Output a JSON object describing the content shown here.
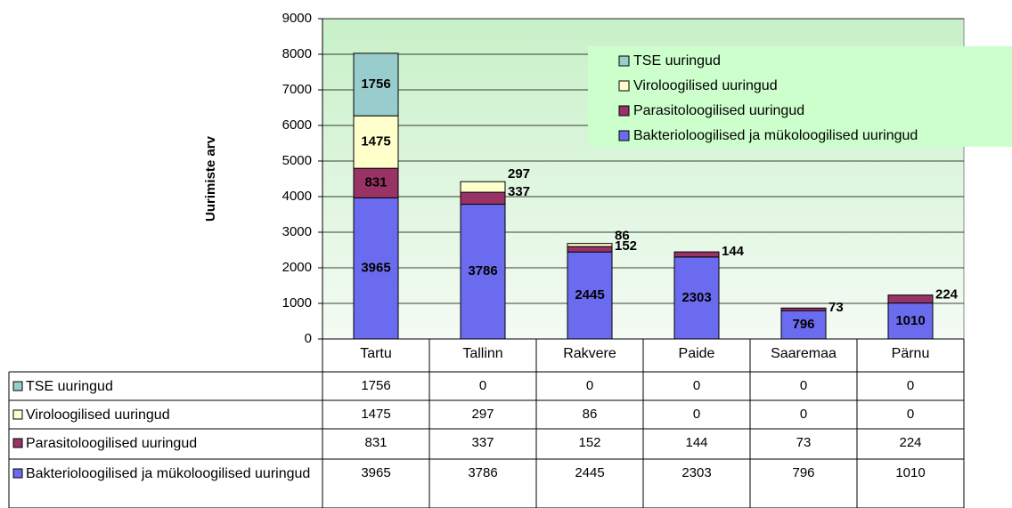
{
  "chart_data": {
    "type": "bar",
    "stacked": true,
    "ylabel": "Uurimiste arv",
    "categories": [
      "Tartu",
      "Tallinn",
      "Rakvere",
      "Paide",
      "Saaremaa",
      "Pärnu"
    ],
    "series": [
      {
        "name": "Bakterioloogilised ja mükoloogilised uuringud",
        "color": "#6b6bef",
        "values": [
          3965,
          3786,
          2445,
          2303,
          796,
          1010
        ]
      },
      {
        "name": "Parasitoloogilised uuringud",
        "color": "#993366",
        "values": [
          831,
          337,
          152,
          144,
          73,
          224
        ]
      },
      {
        "name": "Viroloogilised uuringud",
        "color": "#ffffcc",
        "values": [
          1475,
          297,
          86,
          0,
          0,
          0
        ]
      },
      {
        "name": "TSE uuringud",
        "color": "#99cccc",
        "values": [
          1756,
          0,
          0,
          0,
          0,
          0
        ]
      }
    ],
    "ylim": [
      0,
      9000
    ],
    "yticks": [
      0,
      1000,
      2000,
      3000,
      4000,
      5000,
      6000,
      7000,
      8000,
      9000
    ],
    "grid": true,
    "legend": "upper right",
    "data_table": true
  }
}
